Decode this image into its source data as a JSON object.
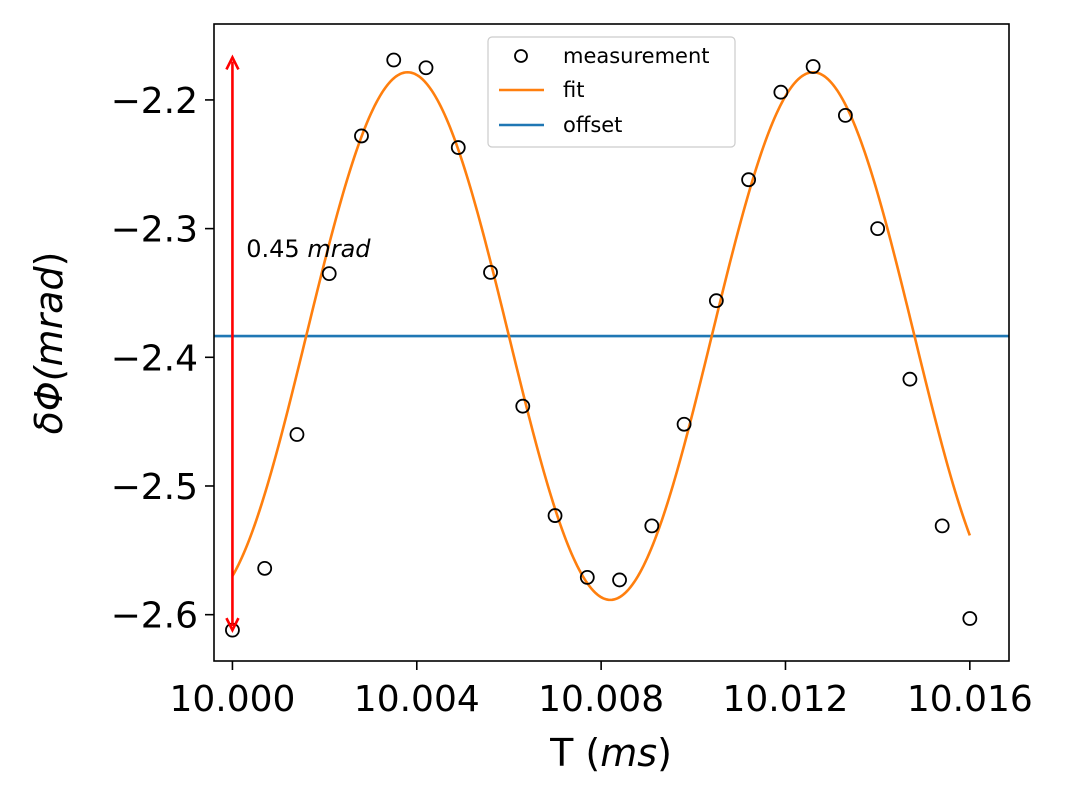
{
  "chart_data": {
    "type": "scatter",
    "xlabel_prefix": "T (",
    "xlabel_unit": "ms",
    "xlabel_suffix": ")",
    "ylabel_prefix": "δΦ(",
    "ylabel_unit": "mrad",
    "ylabel_suffix": ")",
    "xlim": [
      9.9996,
      10.01685
    ],
    "ylim": [
      -2.636,
      -2.141
    ],
    "xticks": [
      10.0,
      10.004,
      10.008,
      10.012,
      10.016
    ],
    "xtick_labels": [
      "10.000",
      "10.004",
      "10.008",
      "10.012",
      "10.016"
    ],
    "yticks": [
      -2.6,
      -2.5,
      -2.4,
      -2.3,
      -2.2
    ],
    "ytick_labels": [
      "−2.6",
      "−2.5",
      "−2.4",
      "−2.3",
      "−2.2"
    ],
    "legend_position": "top-center",
    "grid": false,
    "colors": {
      "measurement": "#000000",
      "fit": "#ff7f0e",
      "offset": "#1f77b4",
      "arrow": "#ff0000"
    },
    "series": [
      {
        "name": "measurement",
        "type": "scatter",
        "x": [
          10.0,
          10.0007,
          10.0014,
          10.0021,
          10.0028,
          10.0035,
          10.0042,
          10.0049,
          10.0056,
          10.0063,
          10.007,
          10.0077,
          10.0084,
          10.0091,
          10.0098,
          10.0105,
          10.0112,
          10.0119,
          10.0126,
          10.0133,
          10.014,
          10.0147,
          10.0154,
          10.016
        ],
        "y": [
          -2.612,
          -2.564,
          -2.46,
          -2.335,
          -2.228,
          -2.169,
          -2.175,
          -2.237,
          -2.334,
          -2.438,
          -2.523,
          -2.571,
          -2.573,
          -2.531,
          -2.452,
          -2.356,
          -2.262,
          -2.194,
          -2.174,
          -2.212,
          -2.3,
          -2.417,
          -2.531,
          -2.603
        ]
      },
      {
        "name": "fit",
        "type": "line",
        "offset": -2.3835,
        "amplitude": 0.205,
        "period": 0.0088,
        "peak_at": 10.0038,
        "x_range": [
          10.0,
          10.016
        ]
      },
      {
        "name": "offset",
        "type": "hline",
        "y": -2.3835
      }
    ],
    "annotations": [
      {
        "type": "double-arrow",
        "x": 10.0,
        "y_from": -2.612,
        "y_to": -2.167,
        "label_value": "0.45",
        "label_unit": "mrad",
        "label_x": 10.0003,
        "label_y": -2.322
      }
    ]
  }
}
